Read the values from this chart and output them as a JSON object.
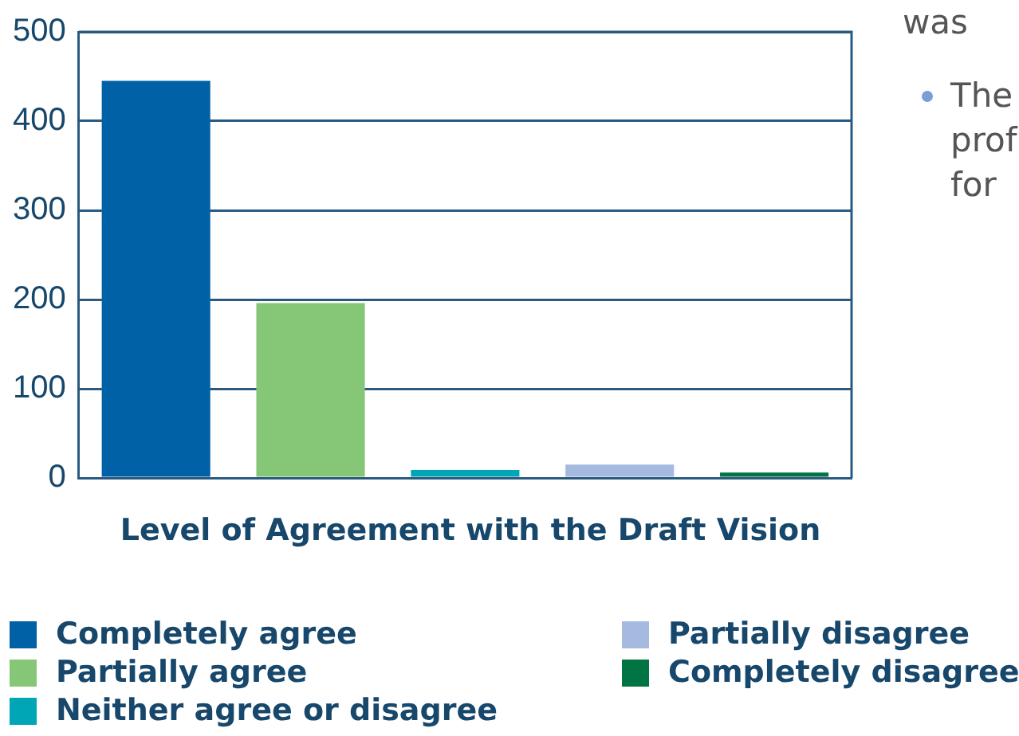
{
  "chart_data": {
    "type": "bar",
    "xlabel": "Level of Agreement with the Draft Vision",
    "categories": [
      null,
      null,
      null,
      null,
      null
    ],
    "series": [
      {
        "name": "Completely agree",
        "color": "#0061a6",
        "values": [
          445,
          null,
          null,
          null,
          null
        ]
      },
      {
        "name": "Partially agree",
        "color": "#86c777",
        "values": [
          null,
          196,
          null,
          null,
          null
        ]
      },
      {
        "name": "Neither agree or disagree",
        "color": "#00a6b6",
        "values": [
          null,
          null,
          9,
          null,
          null
        ]
      },
      {
        "name": "Partially disagree",
        "color": "#a6badf",
        "values": [
          null,
          null,
          null,
          15,
          null
        ]
      },
      {
        "name": "Completely disagree",
        "color": "#007442",
        "values": [
          null,
          null,
          null,
          null,
          6
        ]
      }
    ],
    "ylim": [
      0,
      500
    ],
    "yticks": [
      0,
      100,
      200,
      300,
      400,
      500
    ],
    "grid": "y",
    "legend": "bottom",
    "annotations": [
      "was",
      "The",
      "prof",
      "for"
    ]
  }
}
